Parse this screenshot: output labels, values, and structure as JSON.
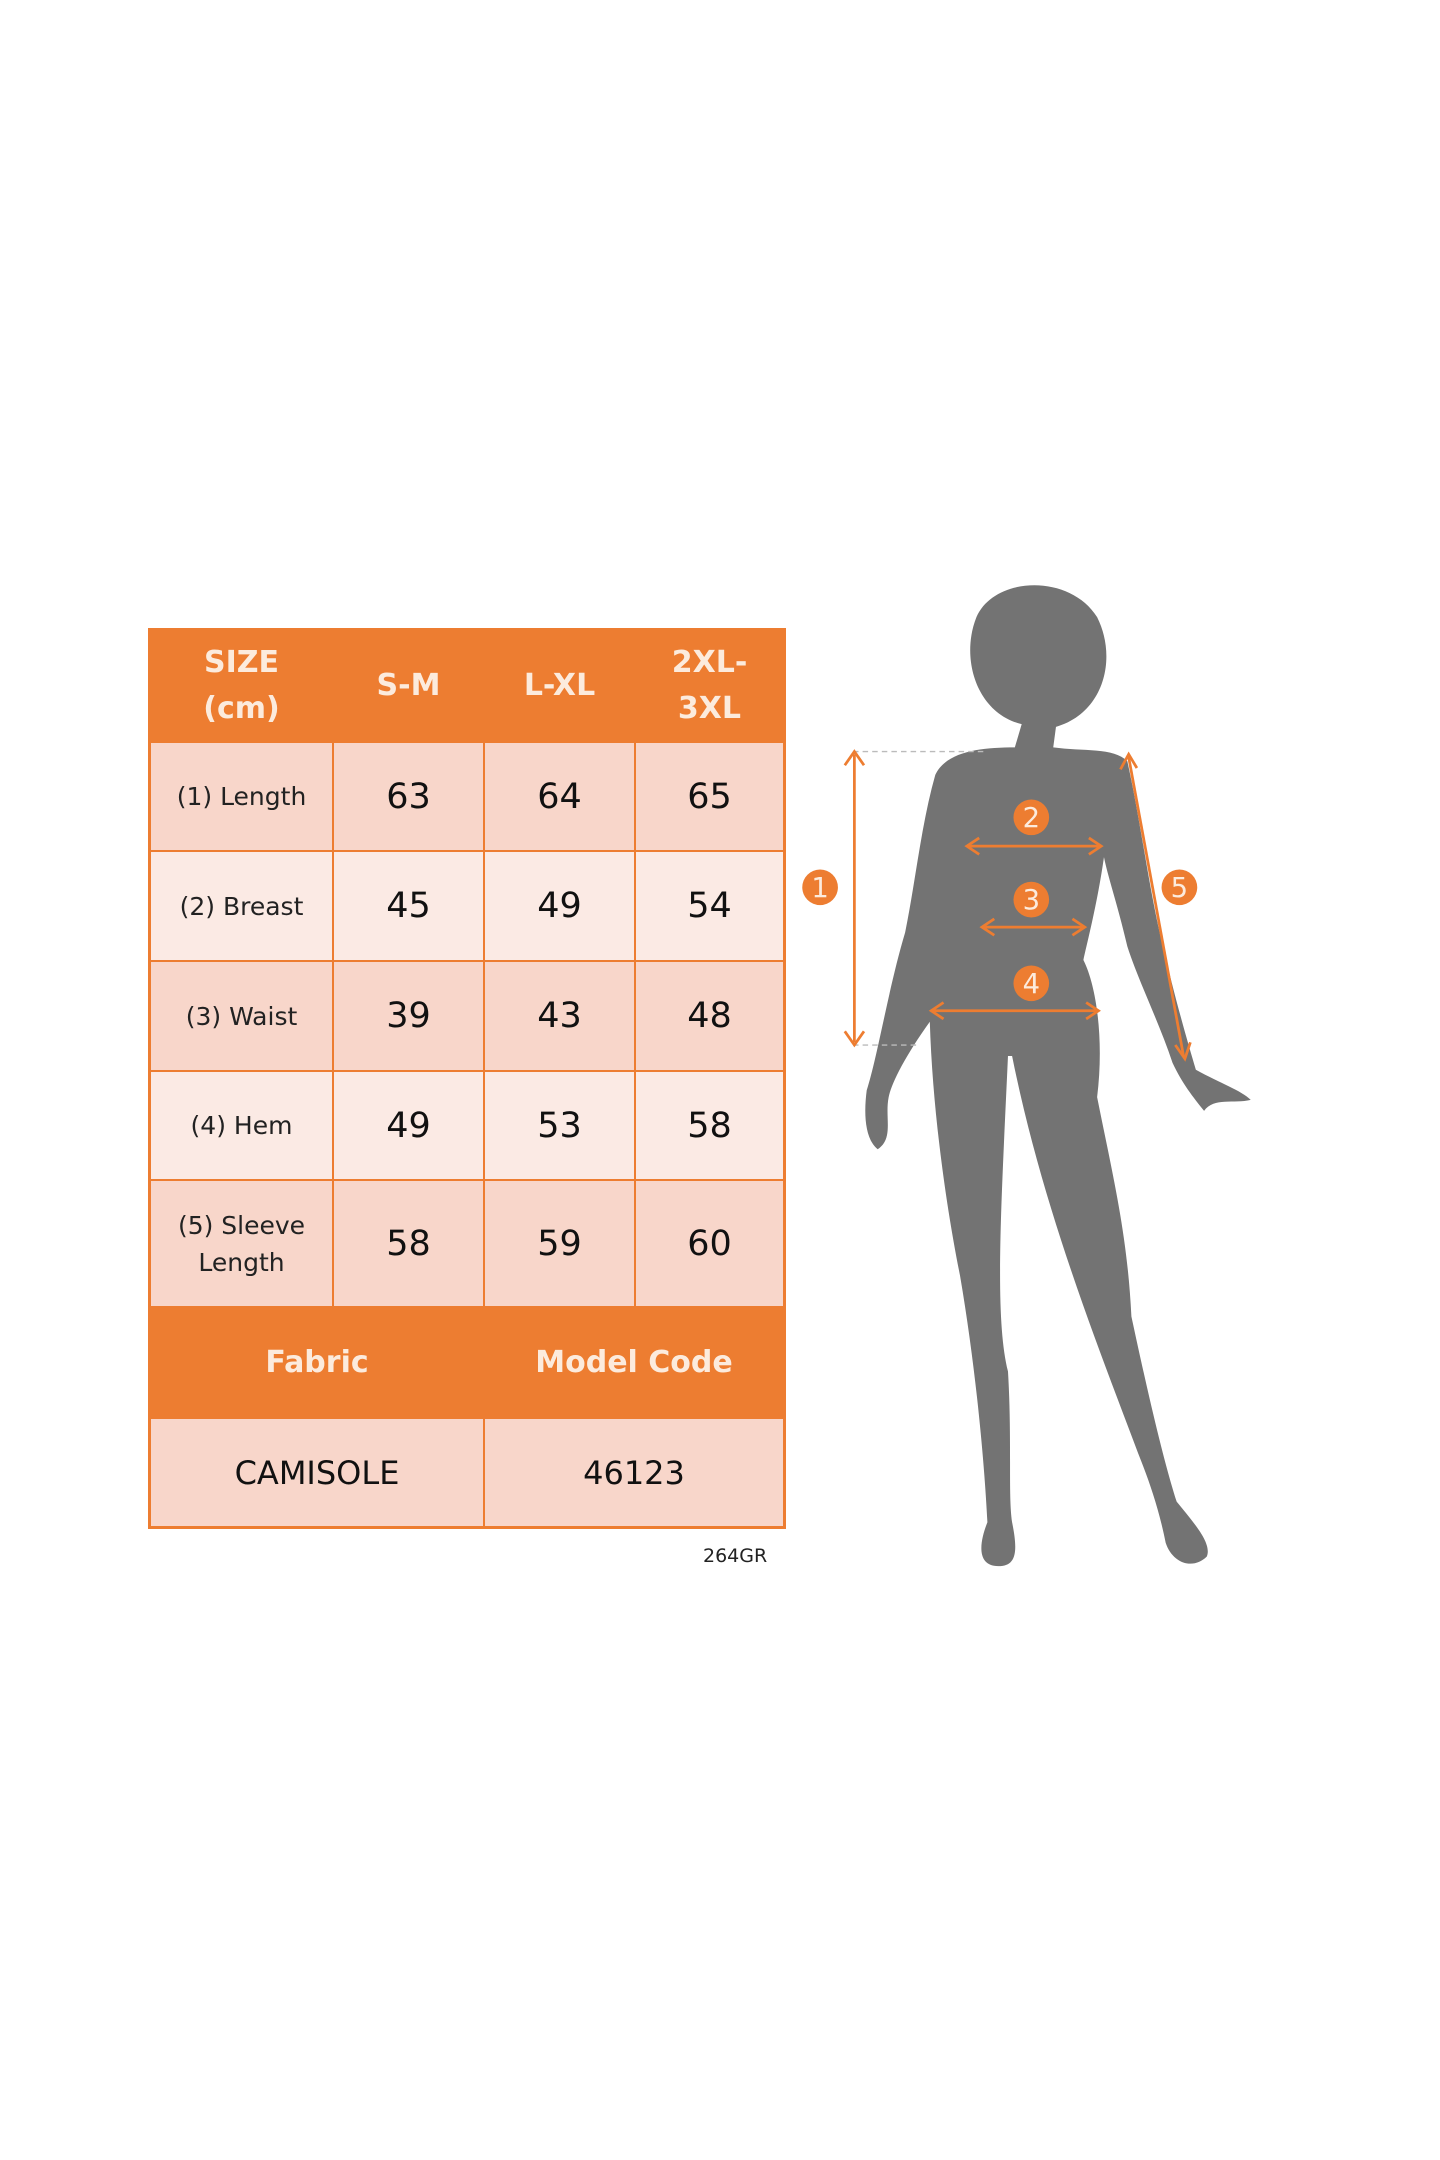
{
  "table": {
    "header": [
      "SIZE\n(cm)",
      "S-M",
      "L-XL",
      "2XL-\n3XL"
    ],
    "rows": [
      {
        "label": "(1) Length",
        "values": [
          "63",
          "64",
          "65"
        ]
      },
      {
        "label": "(2) Breast",
        "values": [
          "45",
          "49",
          "54"
        ]
      },
      {
        "label": "(3) Waist",
        "values": [
          "39",
          "43",
          "48"
        ]
      },
      {
        "label": "(4) Hem",
        "values": [
          "49",
          "53",
          "58"
        ]
      },
      {
        "label": "(5) Sleeve\nLength",
        "values": [
          "58",
          "59",
          "60"
        ]
      }
    ],
    "info_header": [
      "Fabric",
      "Model Code"
    ],
    "info_values": [
      "CAMISOLE",
      "46123"
    ]
  },
  "footer_code": "264GR",
  "figure": {
    "markers": [
      "1",
      "2",
      "3",
      "4",
      "5"
    ],
    "colors": {
      "accent": "#ED7D31",
      "silhouette": "#737373",
      "row_dark": "#F8D6CA",
      "row_light": "#FBEAE4"
    }
  }
}
